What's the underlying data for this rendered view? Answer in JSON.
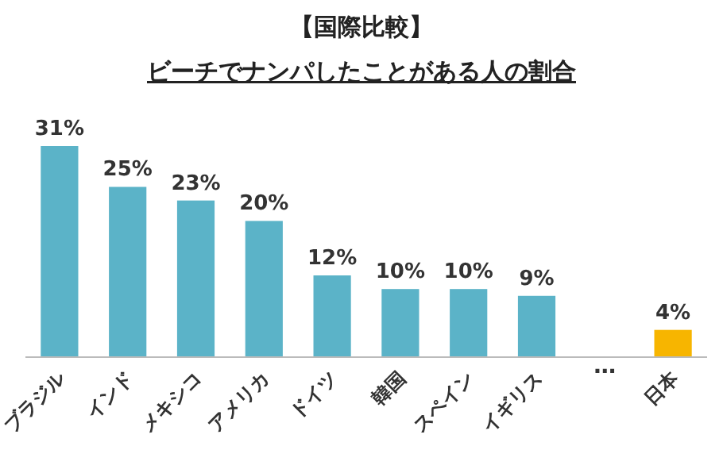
{
  "chart_data": {
    "type": "bar",
    "title": "【国際比較】",
    "subtitle": "ビーチでナンパしたことがある人の割合",
    "categories": [
      "ブラジル",
      "インド",
      "メキシコ",
      "アメリカ",
      "ドイツ",
      "韓国",
      "スペイン",
      "イギリス",
      "…",
      "日本"
    ],
    "values": [
      31,
      25,
      23,
      20,
      12,
      10,
      10,
      9,
      null,
      4
    ],
    "colors": [
      "#5bb3c8",
      "#5bb3c8",
      "#5bb3c8",
      "#5bb3c8",
      "#5bb3c8",
      "#5bb3c8",
      "#5bb3c8",
      "#5bb3c8",
      null,
      "#f7b500"
    ],
    "value_labels": [
      "31%",
      "25%",
      "23%",
      "20%",
      "12%",
      "10%",
      "10%",
      "9%",
      null,
      "4%"
    ]
  }
}
